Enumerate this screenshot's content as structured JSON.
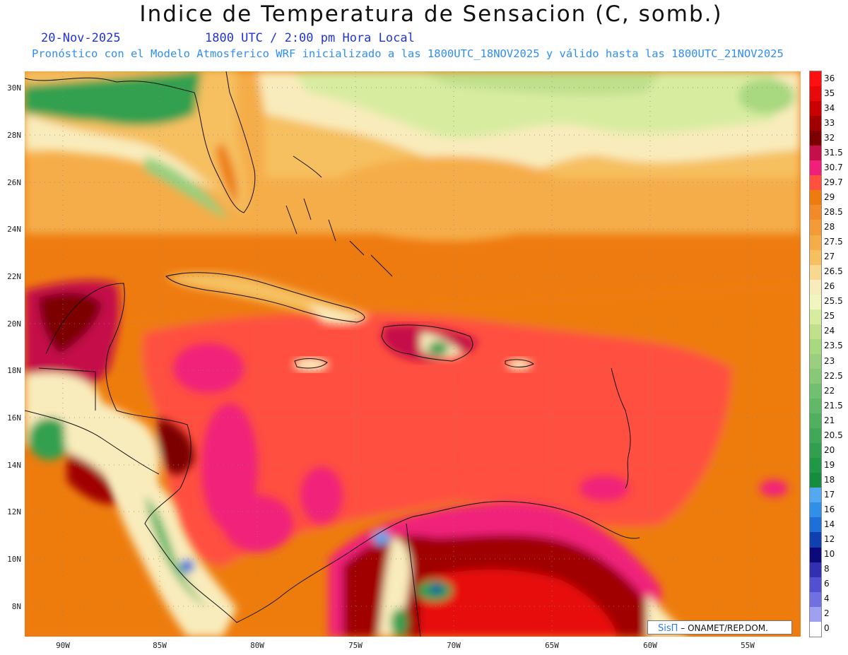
{
  "title": "Indice de Temperatura de Sensacion (C, somb.)",
  "date": "20-Nov-2025",
  "time": "1800 UTC / 2:00 pm Hora Local",
  "subtitle": "Pronóstico con el Modelo Atmosferico WRF inicializado a las 1800UTC_18NOV2025 y válido hasta las  1800UTC_21NOV2025",
  "credit": {
    "logo": "SisΠ",
    "text": "– ONAMET/REP.DOM."
  },
  "lat_labels": [
    "30N",
    "28N",
    "26N",
    "24N",
    "22N",
    "20N",
    "18N",
    "16N",
    "14N",
    "12N",
    "10N",
    "8N"
  ],
  "lon_labels": [
    "90W",
    "85W",
    "80W",
    "75W",
    "70W",
    "65W",
    "60W",
    "55W"
  ],
  "colorbar": {
    "labels": [
      "36",
      "35",
      "34",
      "33",
      "32",
      "31.5",
      "30.7",
      "29.7",
      "29",
      "28.5",
      "28",
      "27.5",
      "27",
      "26.5",
      "26",
      "25.5",
      "25",
      "24",
      "23.5",
      "23",
      "22.5",
      "22",
      "21.5",
      "21",
      "20.5",
      "20",
      "19",
      "18",
      "17",
      "16",
      "14",
      "12",
      "10",
      "8",
      "6",
      "4",
      "2",
      "0"
    ],
    "colors": [
      "#ff1010",
      "#e80a0a",
      "#c80000",
      "#a00000",
      "#7c0000",
      "#c4104a",
      "#f0207a",
      "#ff5040",
      "#ee7b10",
      "#f28a28",
      "#f49a38",
      "#f5ad48",
      "#f6c060",
      "#f8d890",
      "#f9ecbc",
      "#f3f5c0",
      "#d8eca0",
      "#c0e08c",
      "#a8d880",
      "#98d080",
      "#88c878",
      "#70c070",
      "#60b868",
      "#50b060",
      "#40a858",
      "#30a050",
      "#209848",
      "#158c40",
      "#55a8f0",
      "#3090e8",
      "#1f6fd8",
      "#1040b0",
      "#0a0a7a",
      "#3030b0",
      "#5050d0",
      "#7070e0",
      "#a0a0f0",
      "#ffffff"
    ]
  }
}
